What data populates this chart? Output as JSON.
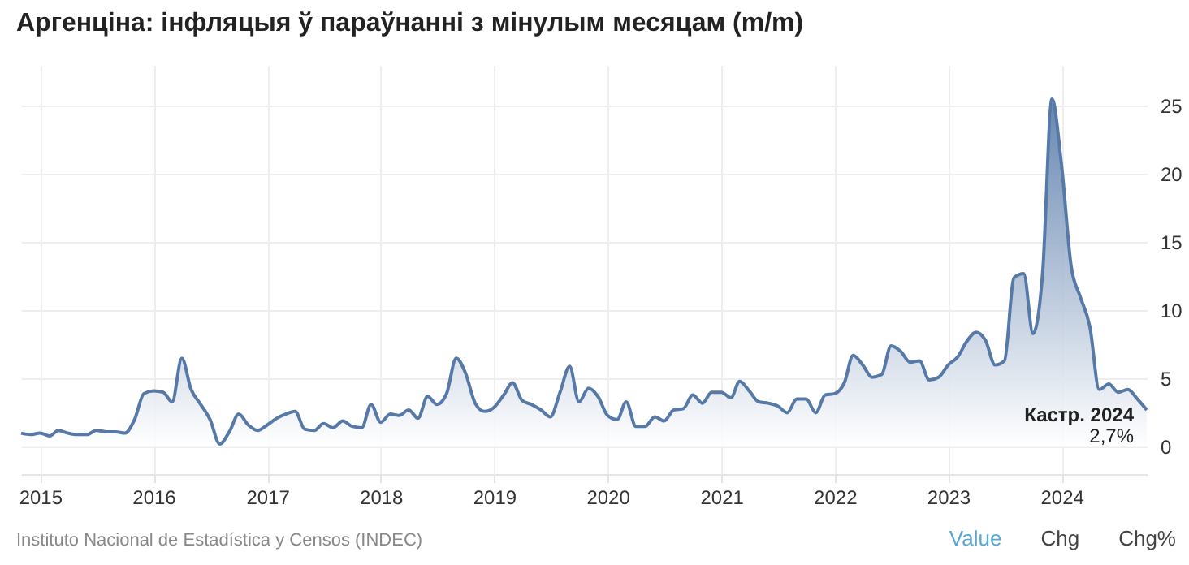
{
  "chart_data": {
    "type": "area",
    "title": "Аргенціна: інфляцыя ў параўнанні з мінулым месяцам (m/m)",
    "x": [
      "2014-11",
      "2014-12",
      "2015-01",
      "2015-02",
      "2015-03",
      "2015-04",
      "2015-05",
      "2015-06",
      "2015-07",
      "2015-08",
      "2015-09",
      "2015-10",
      "2015-11",
      "2015-12",
      "2016-01",
      "2016-02",
      "2016-03",
      "2016-04",
      "2016-05",
      "2016-06",
      "2016-07",
      "2016-08",
      "2016-09",
      "2016-10",
      "2016-11",
      "2016-12",
      "2017-01",
      "2017-02",
      "2017-03",
      "2017-04",
      "2017-05",
      "2017-06",
      "2017-07",
      "2017-08",
      "2017-09",
      "2017-10",
      "2017-11",
      "2017-12",
      "2018-01",
      "2018-02",
      "2018-03",
      "2018-04",
      "2018-05",
      "2018-06",
      "2018-07",
      "2018-08",
      "2018-09",
      "2018-10",
      "2018-11",
      "2018-12",
      "2019-01",
      "2019-02",
      "2019-03",
      "2019-04",
      "2019-05",
      "2019-06",
      "2019-07",
      "2019-08",
      "2019-09",
      "2019-10",
      "2019-11",
      "2019-12",
      "2020-01",
      "2020-02",
      "2020-03",
      "2020-04",
      "2020-05",
      "2020-06",
      "2020-07",
      "2020-08",
      "2020-09",
      "2020-10",
      "2020-11",
      "2020-12",
      "2021-01",
      "2021-02",
      "2021-03",
      "2021-04",
      "2021-05",
      "2021-06",
      "2021-07",
      "2021-08",
      "2021-09",
      "2021-10",
      "2021-11",
      "2021-12",
      "2022-01",
      "2022-02",
      "2022-03",
      "2022-04",
      "2022-05",
      "2022-06",
      "2022-07",
      "2022-08",
      "2022-09",
      "2022-10",
      "2022-11",
      "2022-12",
      "2023-01",
      "2023-02",
      "2023-03",
      "2023-04",
      "2023-05",
      "2023-06",
      "2023-07",
      "2023-08",
      "2023-09",
      "2023-10",
      "2023-11",
      "2023-12",
      "2024-01",
      "2024-02",
      "2024-03",
      "2024-04",
      "2024-05",
      "2024-06",
      "2024-07",
      "2024-08",
      "2024-09",
      "2024-10"
    ],
    "series": [
      {
        "color": "#5679a8",
        "values": [
          1.0,
          0.9,
          1.0,
          0.8,
          1.2,
          1.0,
          0.9,
          0.9,
          1.2,
          1.1,
          1.1,
          1.0,
          2.0,
          3.9,
          4.1,
          4.0,
          3.3,
          6.5,
          4.2,
          3.1,
          2.0,
          0.2,
          1.1,
          2.4,
          1.6,
          1.2,
          1.6,
          2.1,
          2.4,
          2.6,
          1.3,
          1.2,
          1.7,
          1.4,
          1.9,
          1.5,
          1.4,
          3.1,
          1.8,
          2.4,
          2.3,
          2.7,
          2.1,
          3.7,
          3.1,
          3.9,
          6.5,
          5.4,
          3.2,
          2.6,
          2.9,
          3.8,
          4.7,
          3.4,
          3.1,
          2.7,
          2.2,
          4.0,
          5.9,
          3.3,
          4.3,
          3.7,
          2.3,
          2.0,
          3.3,
          1.5,
          1.5,
          2.2,
          1.9,
          2.7,
          2.8,
          3.8,
          3.2,
          4.0,
          4.0,
          3.6,
          4.8,
          4.1,
          3.3,
          3.2,
          3.0,
          2.5,
          3.5,
          3.5,
          2.5,
          3.8,
          3.9,
          4.7,
          6.7,
          6.0,
          5.1,
          5.3,
          7.4,
          7.0,
          6.2,
          6.3,
          4.9,
          5.1,
          6.0,
          6.6,
          7.7,
          8.4,
          7.8,
          6.0,
          6.3,
          12.4,
          12.7,
          8.3,
          12.8,
          25.5,
          20.6,
          13.2,
          11.0,
          8.8,
          4.2,
          4.6,
          4.0,
          4.2,
          3.5,
          2.7
        ]
      }
    ],
    "xlim": [
      "2014-11",
      "2024-10"
    ],
    "xticks": [
      {
        "value": "2015",
        "label": "2015"
      },
      {
        "value": "2016",
        "label": "2016"
      },
      {
        "value": "2017",
        "label": "2017"
      },
      {
        "value": "2018",
        "label": "2018"
      },
      {
        "value": "2019",
        "label": "2019"
      },
      {
        "value": "2020",
        "label": "2020"
      },
      {
        "value": "2021",
        "label": "2021"
      },
      {
        "value": "2022",
        "label": "2022"
      },
      {
        "value": "2023",
        "label": "2023"
      },
      {
        "value": "2024",
        "label": "2024"
      }
    ],
    "ylim": [
      -2,
      28
    ],
    "yticks": [
      0,
      5,
      10,
      15,
      20,
      25
    ],
    "grid": true,
    "annotations": [
      {
        "text": "Кастр. 2024",
        "x": "2024-10",
        "y": 2.7
      },
      {
        "text": "2,7%",
        "x": "2024-10",
        "y": 2.7
      },
      "Instituto Nacional de Estadística y Censos (INDEC)",
      "Value",
      "Chg",
      "Chg%"
    ]
  }
}
